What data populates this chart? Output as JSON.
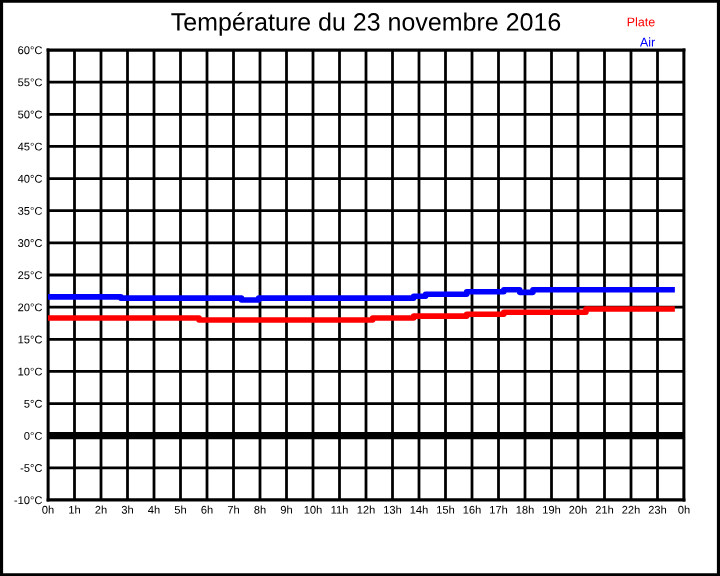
{
  "chart_data": {
    "type": "step",
    "title": "Température du 23 novembre 2016",
    "legend": "top right",
    "grid": true,
    "xlim": [
      "2016-11-23T00:00",
      "2016-11-24T00:00"
    ],
    "xticks": [
      {
        "value": "2016-11-23T00:00",
        "label": "0h"
      },
      {
        "value": "2016-11-23T01:00",
        "label": "1h"
      },
      {
        "value": "2016-11-23T02:00",
        "label": "2h"
      },
      {
        "value": "2016-11-23T03:00",
        "label": "3h"
      },
      {
        "value": "2016-11-23T04:00",
        "label": "4h"
      },
      {
        "value": "2016-11-23T05:00",
        "label": "5h"
      },
      {
        "value": "2016-11-23T06:00",
        "label": "6h"
      },
      {
        "value": "2016-11-23T07:00",
        "label": "7h"
      },
      {
        "value": "2016-11-23T08:00",
        "label": "8h"
      },
      {
        "value": "2016-11-23T09:00",
        "label": "9h"
      },
      {
        "value": "2016-11-23T10:00",
        "label": "10h"
      },
      {
        "value": "2016-11-23T11:00",
        "label": "11h"
      },
      {
        "value": "2016-11-23T12:00",
        "label": "12h"
      },
      {
        "value": "2016-11-23T13:00",
        "label": "13h"
      },
      {
        "value": "2016-11-23T14:00",
        "label": "14h"
      },
      {
        "value": "2016-11-23T15:00",
        "label": "15h"
      },
      {
        "value": "2016-11-23T16:00",
        "label": "16h"
      },
      {
        "value": "2016-11-23T17:00",
        "label": "17h"
      },
      {
        "value": "2016-11-23T18:00",
        "label": "18h"
      },
      {
        "value": "2016-11-23T19:00",
        "label": "19h"
      },
      {
        "value": "2016-11-23T20:00",
        "label": "20h"
      },
      {
        "value": "2016-11-23T21:00",
        "label": "21h"
      },
      {
        "value": "2016-11-23T22:00",
        "label": "22h"
      },
      {
        "value": "2016-11-23T23:00",
        "label": "23h"
      },
      {
        "value": "2016-11-24T00:00",
        "label": "0h"
      }
    ],
    "ylim": [
      -10,
      60
    ],
    "yticks": [
      {
        "value": -10,
        "label": "-10°C"
      },
      {
        "value": -5,
        "label": "-5°C"
      },
      {
        "value": 0,
        "label": "0°C"
      },
      {
        "value": 5,
        "label": "5°C"
      },
      {
        "value": 10,
        "label": "10°C"
      },
      {
        "value": 15,
        "label": "15°C"
      },
      {
        "value": 20,
        "label": "20°C"
      },
      {
        "value": 25,
        "label": "25°C"
      },
      {
        "value": 30,
        "label": "30°C"
      },
      {
        "value": 35,
        "label": "35°C"
      },
      {
        "value": 40,
        "label": "40°C"
      },
      {
        "value": 45,
        "label": "45°C"
      },
      {
        "value": 50,
        "label": "50°C"
      },
      {
        "value": 55,
        "label": "55°C"
      },
      {
        "value": 60,
        "label": "60°C"
      }
    ],
    "ref_lines": [
      {
        "axis": "y",
        "value": 0,
        "color": "#000000"
      }
    ],
    "series": [
      {
        "name": "Plate",
        "color": "#ff0000",
        "x": [
          "2016-11-23T00:00",
          "2016-11-23T05:42",
          "2016-11-23T12:15",
          "2016-11-23T13:48",
          "2016-11-23T15:48",
          "2016-11-23T17:12",
          "2016-11-23T20:18",
          "2016-11-23T23:33"
        ],
        "values": [
          18.3,
          18.0,
          18.3,
          18.6,
          18.9,
          19.2,
          19.7,
          19.7
        ]
      },
      {
        "name": "Air",
        "color": "#0000ff",
        "x": [
          "2016-11-23T00:00",
          "2016-11-23T02:45",
          "2016-11-23T07:18",
          "2016-11-23T07:57",
          "2016-11-23T13:48",
          "2016-11-23T14:15",
          "2016-11-23T15:48",
          "2016-11-23T17:12",
          "2016-11-23T17:48",
          "2016-11-23T18:18",
          "2016-11-23T23:33"
        ],
        "values": [
          21.6,
          21.4,
          21.1,
          21.4,
          21.7,
          22.0,
          22.4,
          22.7,
          22.3,
          22.7,
          22.7
        ]
      }
    ]
  }
}
